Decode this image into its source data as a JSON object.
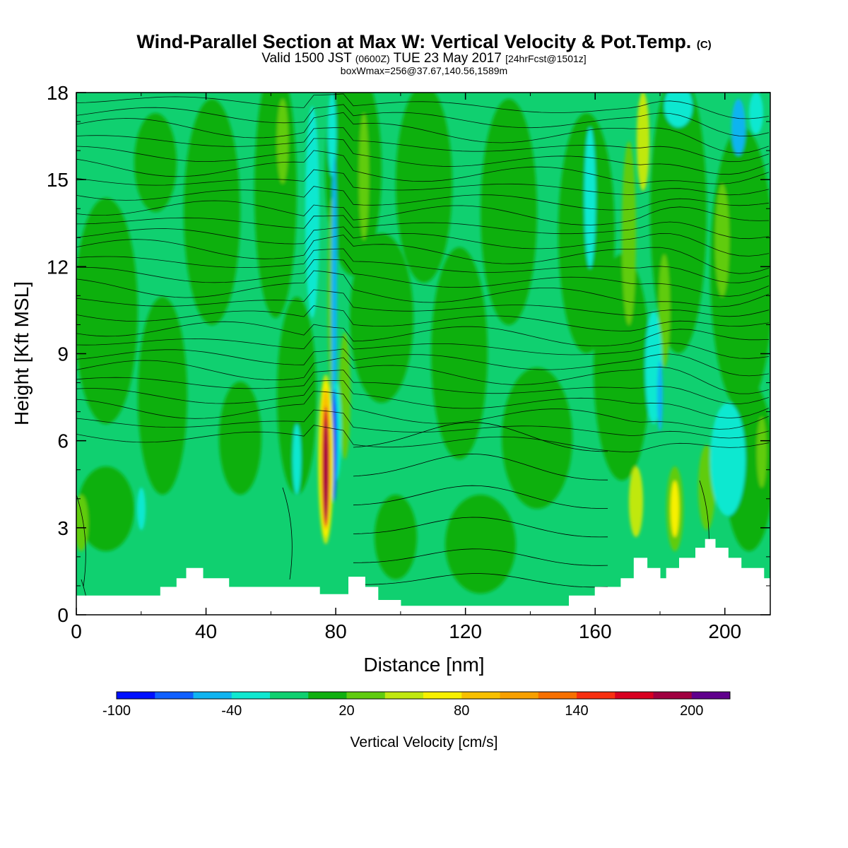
{
  "header": {
    "title": "Wind-Parallel Section at Max W: Vertical Velocity & Pot.Temp.",
    "copyright": "(C)",
    "valid_prefix": "Valid 1500 JST",
    "valid_utc": "(0600Z)",
    "valid_date": "TUE 23 May 2017",
    "forecast": "[24hrFcst@1501z]",
    "box_wmax": "boxWmax=256@37.67,140.56,1589m"
  },
  "chart_data": {
    "type": "heatmap",
    "xlabel": "Distance [nm]",
    "ylabel": "Height [Kft MSL]",
    "xlim": [
      0,
      214
    ],
    "ylim": [
      0,
      18
    ],
    "x_ticks": [
      0,
      40,
      80,
      120,
      160,
      200
    ],
    "y_ticks": [
      0,
      3,
      6,
      9,
      12,
      15,
      18
    ],
    "colorbar": {
      "label": "Vertical Velocity [cm/s]",
      "tick_values": [
        -100,
        -40,
        20,
        80,
        140,
        200
      ],
      "tick_labels": [
        "-100",
        "-40",
        "20",
        "80",
        "140",
        "200"
      ],
      "levels": [
        -100,
        -80,
        -60,
        -40,
        -20,
        0,
        20,
        40,
        60,
        80,
        100,
        120,
        140,
        160,
        180,
        200,
        220
      ],
      "colors": [
        "#0010ff",
        "#1060ff",
        "#10b4f0",
        "#10e8d0",
        "#10d070",
        "#10b010",
        "#60cc10",
        "#c0e810",
        "#f8f000",
        "#f8c000",
        "#f8a000",
        "#f87000",
        "#f83010",
        "#d80020",
        "#a00040",
        "#60008c"
      ]
    },
    "terrain_kft": [
      [
        0,
        0.65
      ],
      [
        26,
        0.65
      ],
      [
        26,
        0.95
      ],
      [
        31,
        0.95
      ],
      [
        31,
        1.25
      ],
      [
        34,
        1.25
      ],
      [
        34,
        1.6
      ],
      [
        39,
        1.6
      ],
      [
        39,
        1.25
      ],
      [
        47,
        1.25
      ],
      [
        47,
        0.95
      ],
      [
        75,
        0.95
      ],
      [
        75,
        0.7
      ],
      [
        84,
        0.7
      ],
      [
        84,
        1.3
      ],
      [
        89,
        1.3
      ],
      [
        89,
        0.95
      ],
      [
        93,
        0.95
      ],
      [
        93,
        0.5
      ],
      [
        100,
        0.5
      ],
      [
        100,
        0.3
      ],
      [
        152,
        0.3
      ],
      [
        152,
        0.65
      ],
      [
        160,
        0.65
      ],
      [
        160,
        0.95
      ],
      [
        168,
        0.95
      ],
      [
        168,
        1.25
      ],
      [
        172,
        1.25
      ],
      [
        172,
        1.95
      ],
      [
        176,
        1.95
      ],
      [
        176,
        1.6
      ],
      [
        180,
        1.6
      ],
      [
        180,
        1.25
      ],
      [
        182,
        1.25
      ],
      [
        182,
        1.6
      ],
      [
        186,
        1.6
      ],
      [
        186,
        1.95
      ],
      [
        191,
        1.95
      ],
      [
        191,
        2.3
      ],
      [
        194,
        2.3
      ],
      [
        194,
        2.6
      ],
      [
        197,
        2.6
      ],
      [
        197,
        2.3
      ],
      [
        201,
        2.3
      ],
      [
        201,
        1.95
      ],
      [
        205,
        1.95
      ],
      [
        205,
        1.6
      ],
      [
        212,
        1.6
      ],
      [
        212,
        1.25
      ],
      [
        214,
        1.25
      ]
    ],
    "wmax_cm_s": 256,
    "wmax_location": "37.67,140.56"
  }
}
